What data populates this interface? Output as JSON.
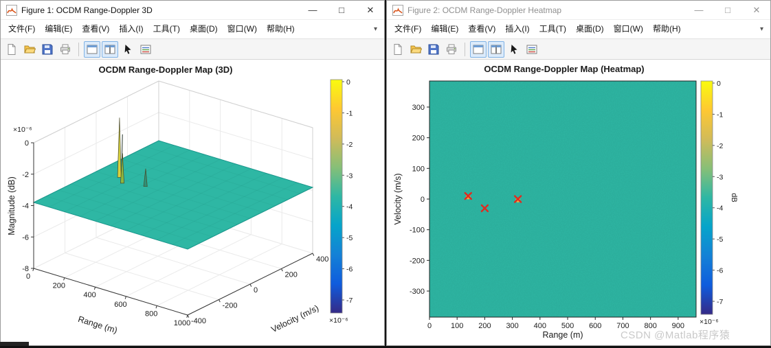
{
  "watermark": "CSDN @Matlab程序猿",
  "window1": {
    "title": "Figure 1: OCDM Range-Doppler 3D",
    "buttons": {
      "minimize": "—",
      "maximize": "□",
      "close": "✕"
    },
    "menu": [
      "文件(F)",
      "编辑(E)",
      "查看(V)",
      "插入(I)",
      "工具(T)",
      "桌面(D)",
      "窗口(W)",
      "帮助(H)"
    ],
    "menu_overflow": "▾",
    "toolbar": [
      "new-file",
      "open-file",
      "save",
      "print",
      "separator",
      "view-docked",
      "view-split",
      "pointer",
      "plot-browser"
    ],
    "toolbar_active": [
      "view-docked",
      "view-split"
    ]
  },
  "window2": {
    "title": "Figure 2: OCDM Range-Doppler Heatmap",
    "buttons": {
      "minimize": "—",
      "maximize": "□",
      "close": "✕"
    },
    "menu": [
      "文件(F)",
      "编辑(E)",
      "查看(V)",
      "插入(I)",
      "工具(T)",
      "桌面(D)",
      "窗口(W)",
      "帮助(H)"
    ],
    "menu_overflow": "▾",
    "toolbar": [
      "new-file",
      "open-file",
      "save",
      "print",
      "separator",
      "view-docked",
      "view-split",
      "pointer",
      "plot-browser"
    ],
    "toolbar_active": [
      "view-docked",
      "view-split"
    ]
  },
  "chart_data": [
    {
      "type": "surface",
      "figure": "Figure 1",
      "title": "OCDM Range-Doppler Map (3D)",
      "xlabel": "Range (m)",
      "ylabel": "Velocity (m/s)",
      "zlabel": "Magnitude (dB)",
      "z_exponent_label": "×10⁻⁶",
      "xlim": [
        0,
        1000
      ],
      "ylim": [
        -400,
        400
      ],
      "zlim": [
        -8,
        0
      ],
      "x_ticks": [
        0,
        200,
        400,
        600,
        800,
        1000
      ],
      "y_ticks": [
        -400,
        -200,
        0,
        200,
        400
      ],
      "z_ticks": [
        0,
        -2,
        -4,
        -6,
        -8
      ],
      "surface_level": -3.8,
      "surface_color": "#2eb7a4",
      "peaks": [
        {
          "range": 140,
          "velocity": 10,
          "rel_height": 1.0
        },
        {
          "range": 200,
          "velocity": -30,
          "rel_height": 0.5
        },
        {
          "range": 320,
          "velocity": 0,
          "rel_height": 0.3
        }
      ],
      "colorbar": {
        "ticks": [
          0,
          -1,
          -2,
          -3,
          -4,
          -5,
          -6,
          -7
        ],
        "exponent_label": "×10⁻⁶"
      }
    },
    {
      "type": "heatmap",
      "figure": "Figure 2",
      "title": "OCDM Range-Doppler Map (Heatmap)",
      "xlabel": "Range (m)",
      "ylabel": "Velocity (m/s)",
      "xlim": [
        0,
        965
      ],
      "ylim": [
        -385,
        385
      ],
      "x_ticks": [
        0,
        100,
        200,
        300,
        400,
        500,
        600,
        700,
        800,
        900
      ],
      "y_ticks": [
        300,
        200,
        100,
        0,
        -100,
        -200,
        -300
      ],
      "background_color": "#2eb7a4",
      "marker_color": "#e02b20",
      "markers": [
        {
          "range": 140,
          "velocity": 10,
          "dot": true
        },
        {
          "range": 200,
          "velocity": -30,
          "dot": false
        },
        {
          "range": 320,
          "velocity": 0,
          "dot": true
        }
      ],
      "colorbar": {
        "label": "dB",
        "ticks": [
          0,
          -1,
          -2,
          -3,
          -4,
          -5,
          -6,
          -7
        ],
        "exponent_label": "×10⁻⁶"
      }
    }
  ]
}
